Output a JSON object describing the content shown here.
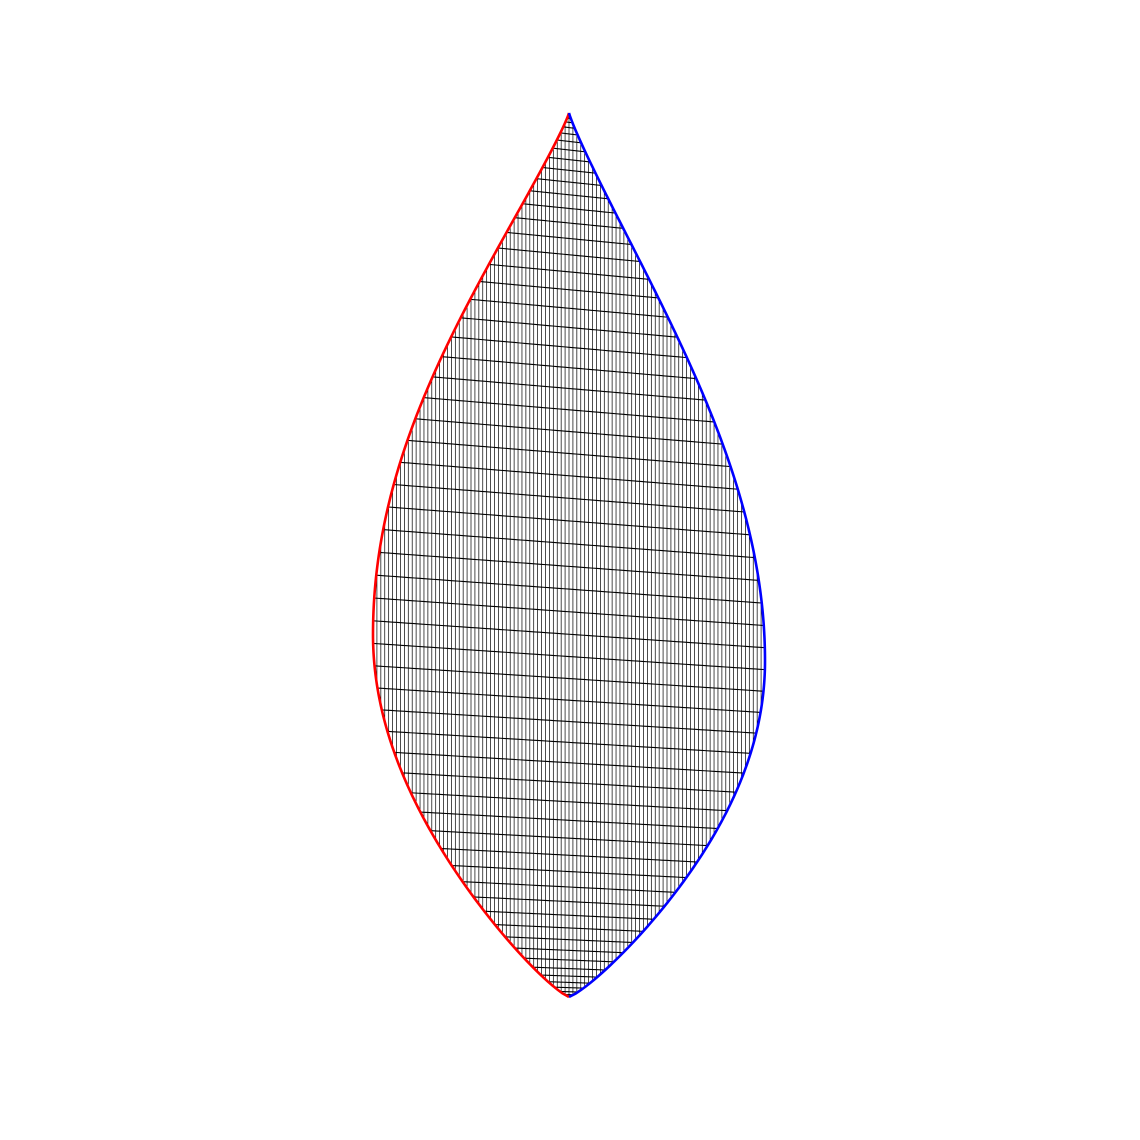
{
  "figure": {
    "shape": "teardrop mesh",
    "colors": {
      "background": "#ffffff",
      "mesh_lines": "#000000",
      "left_boundary": "#ff0000",
      "right_boundary": "#0000ff"
    },
    "mesh": {
      "vertical_line_count": 99,
      "horizontal_line_count": 60
    }
  }
}
